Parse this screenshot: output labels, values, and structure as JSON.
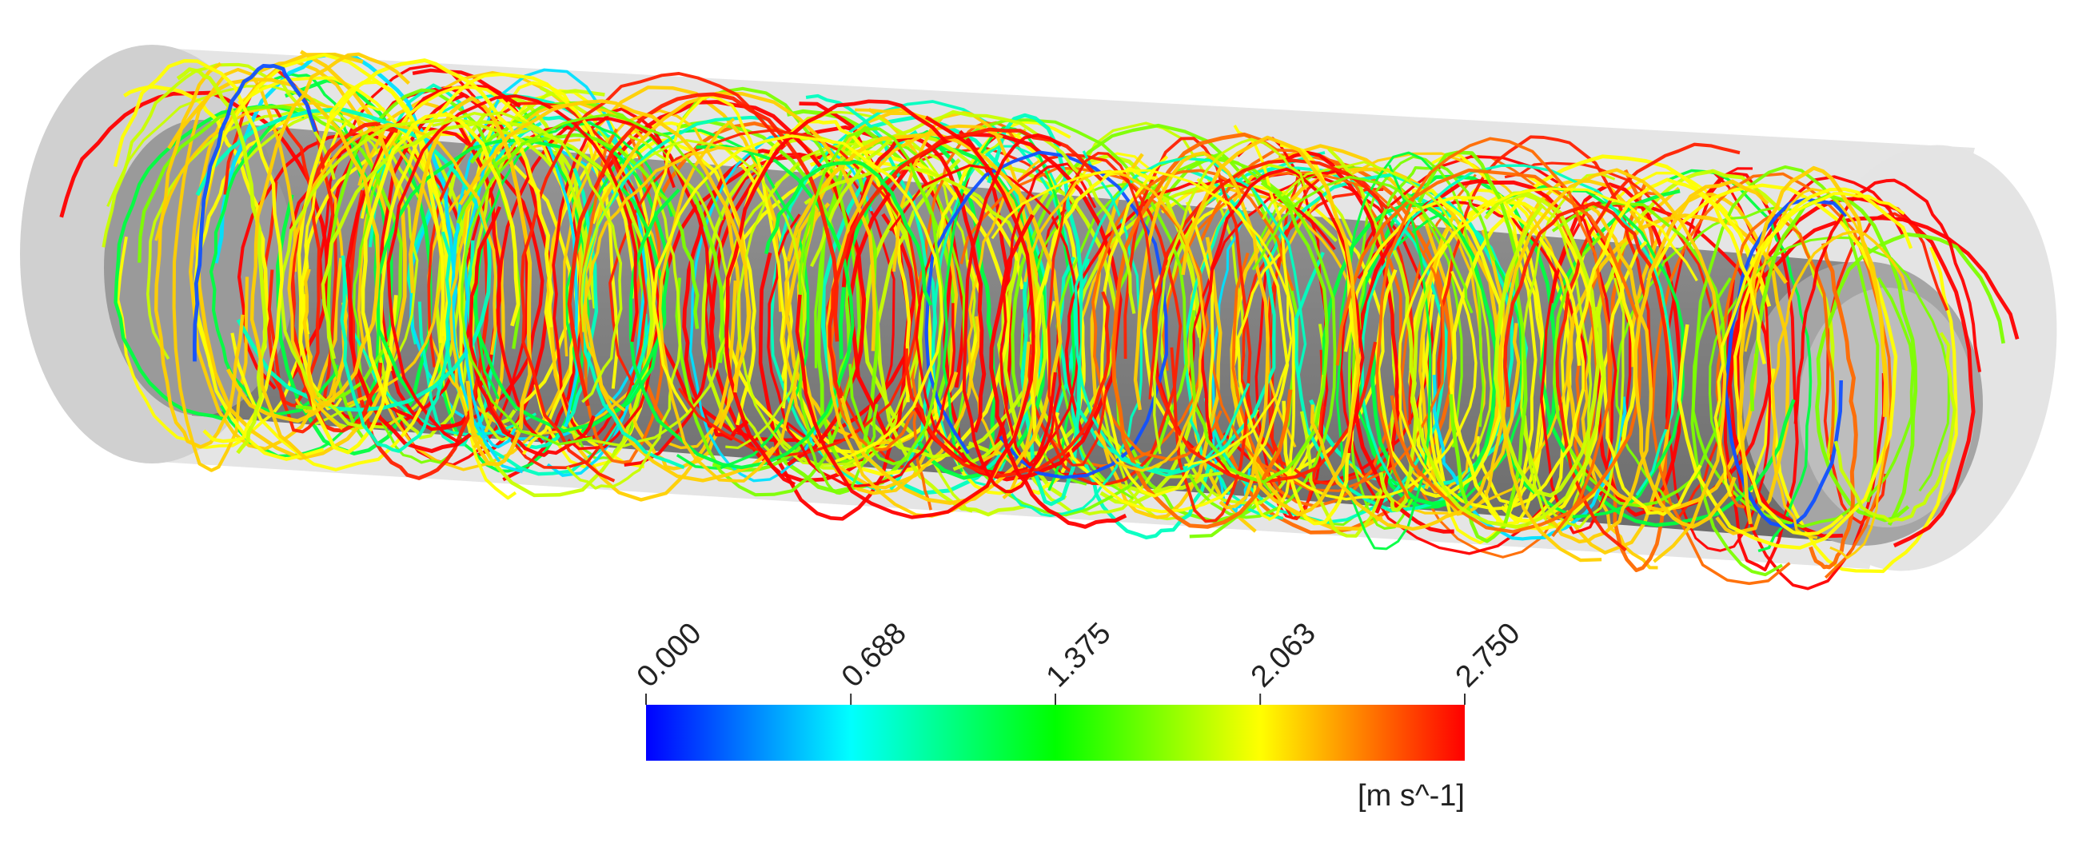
{
  "colorbar": {
    "range": [
      0,
      2.75
    ],
    "ticks": [
      {
        "value": 0,
        "label": "0.000"
      },
      {
        "value": 0.688,
        "label": "0.688"
      },
      {
        "value": 1.375,
        "label": "1.375"
      },
      {
        "value": 2.063,
        "label": "2.063"
      },
      {
        "value": 2.75,
        "label": "2.750"
      }
    ],
    "colormap": [
      "#0000ff",
      "#00ffff",
      "#00ff00",
      "#ffff00",
      "#ff0000"
    ],
    "unit": "[m s^-1]"
  }
}
